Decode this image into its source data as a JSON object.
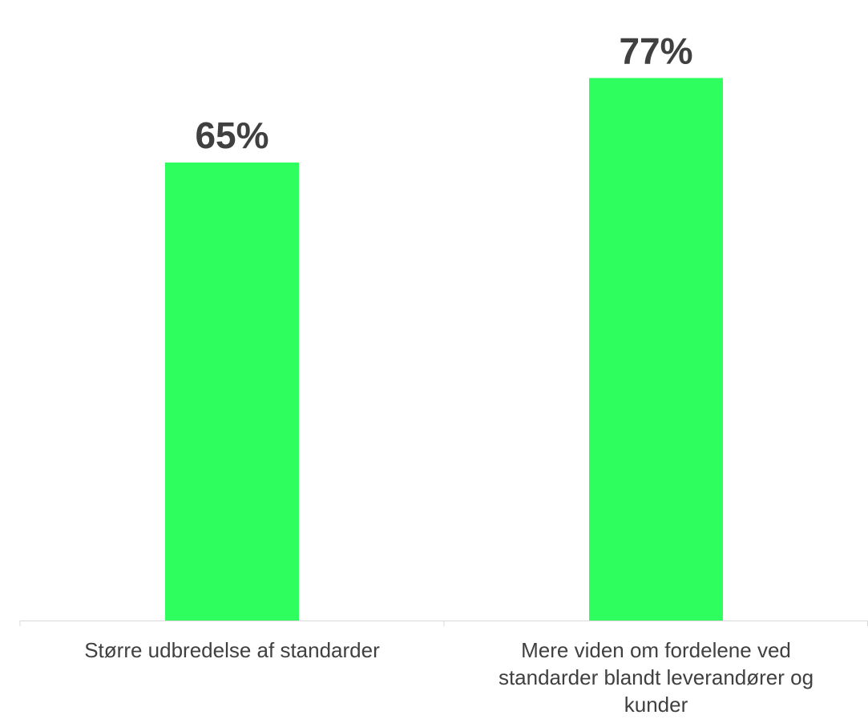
{
  "chart_data": {
    "type": "bar",
    "categories": [
      "Større udbredelse af standarder",
      "Mere viden om fordelene ved standarder blandt leverandører og kunder"
    ],
    "values": [
      65,
      77
    ],
    "value_labels": [
      "65%",
      "77%"
    ],
    "title": "",
    "xlabel": "",
    "ylabel": "",
    "ylim": [
      0,
      80
    ],
    "grid": false,
    "legend": "none",
    "colors": {
      "bar": "#2eff5f",
      "text": "#404040",
      "axis": "#d9d9d9"
    }
  }
}
